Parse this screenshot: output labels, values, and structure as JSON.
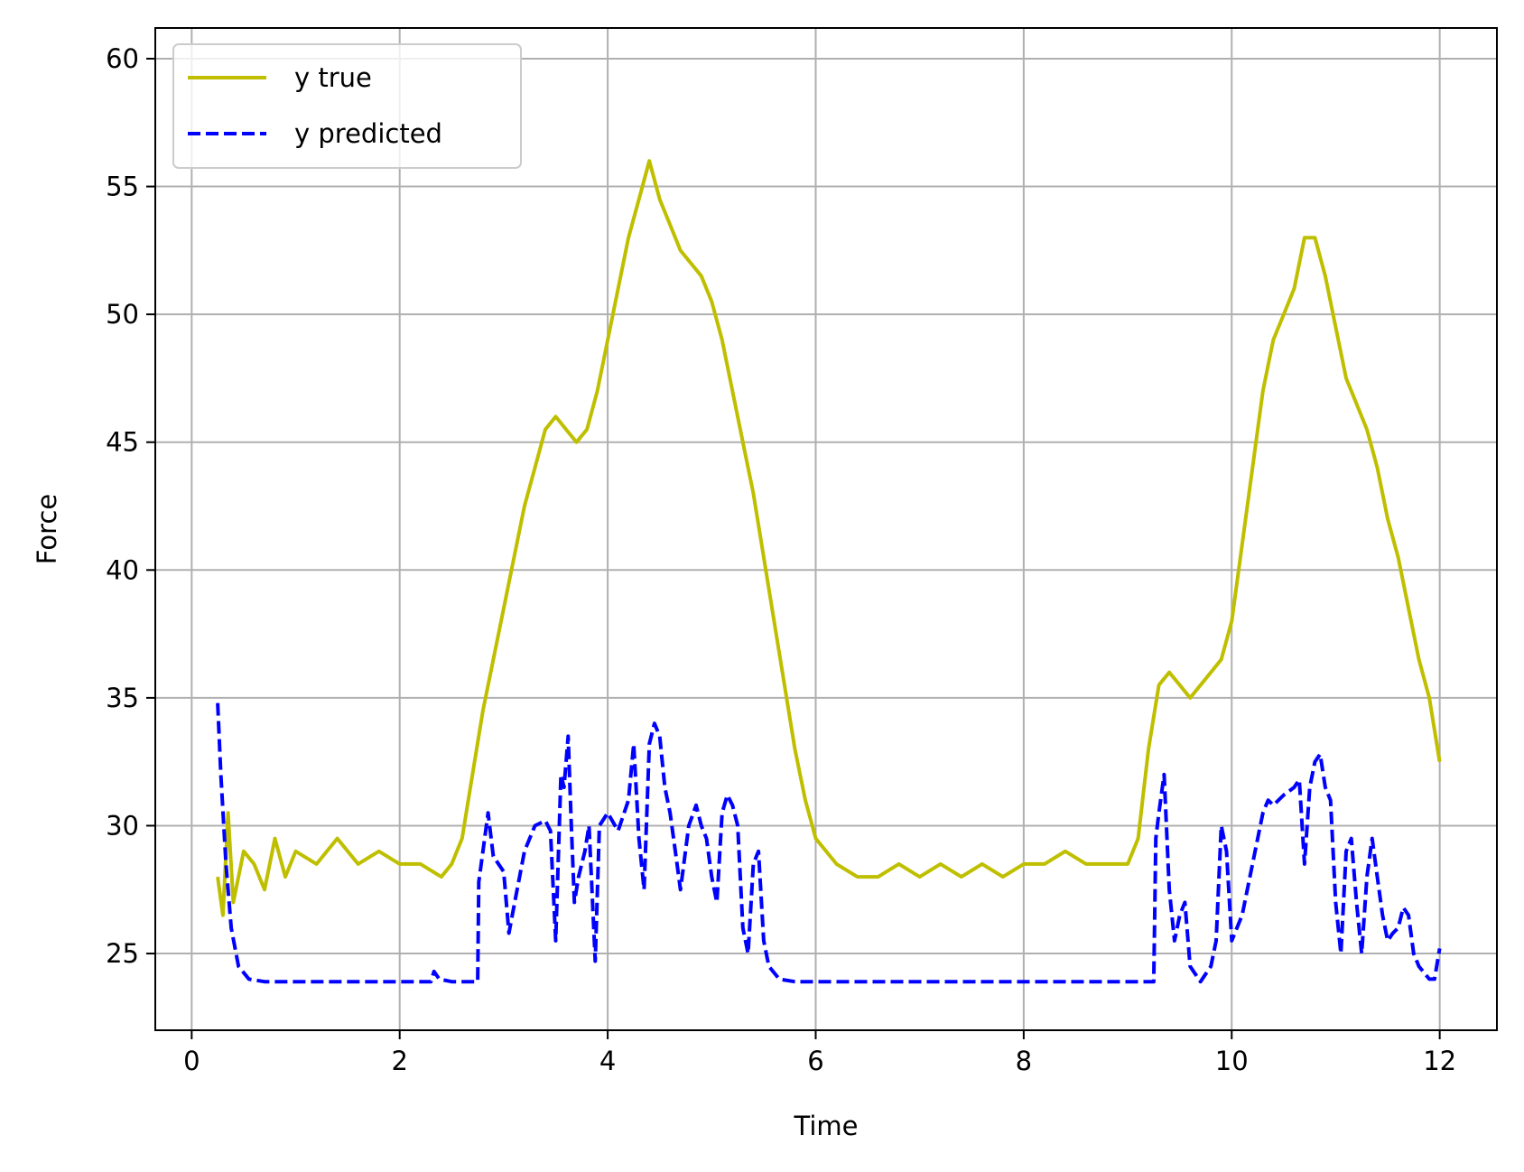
{
  "chart_data": {
    "type": "line",
    "title": "",
    "xlabel": "Time",
    "ylabel": "Force",
    "xlim": [
      -0.35,
      12.55
    ],
    "ylim": [
      22.0,
      61.2
    ],
    "xticks": [
      0,
      2,
      4,
      6,
      8,
      10,
      12
    ],
    "yticks": [
      25,
      30,
      35,
      40,
      45,
      50,
      55,
      60
    ],
    "xtick_labels": [
      "0",
      "2",
      "4",
      "6",
      "8",
      "10",
      "12"
    ],
    "ytick_labels": [
      "25",
      "30",
      "35",
      "40",
      "45",
      "50",
      "55",
      "60"
    ],
    "grid": true,
    "legend_position": "upper-left",
    "series": [
      {
        "name": "y true",
        "color": "#bfbf00",
        "style": "solid",
        "points": [
          [
            0.25,
            28.0
          ],
          [
            0.3,
            26.5
          ],
          [
            0.35,
            30.5
          ],
          [
            0.4,
            27.0
          ],
          [
            0.5,
            29.0
          ],
          [
            0.6,
            28.5
          ],
          [
            0.7,
            27.5
          ],
          [
            0.8,
            29.5
          ],
          [
            0.9,
            28.0
          ],
          [
            1.0,
            29.0
          ],
          [
            1.2,
            28.5
          ],
          [
            1.4,
            29.5
          ],
          [
            1.6,
            28.5
          ],
          [
            1.8,
            29.0
          ],
          [
            2.0,
            28.5
          ],
          [
            2.2,
            28.5
          ],
          [
            2.4,
            28.0
          ],
          [
            2.5,
            28.5
          ],
          [
            2.6,
            29.5
          ],
          [
            2.7,
            32.0
          ],
          [
            2.8,
            34.5
          ],
          [
            2.9,
            36.5
          ],
          [
            3.0,
            38.5
          ],
          [
            3.1,
            40.5
          ],
          [
            3.2,
            42.5
          ],
          [
            3.3,
            44.0
          ],
          [
            3.4,
            45.5
          ],
          [
            3.5,
            46.0
          ],
          [
            3.6,
            45.5
          ],
          [
            3.7,
            45.0
          ],
          [
            3.8,
            45.5
          ],
          [
            3.9,
            47.0
          ],
          [
            4.0,
            49.0
          ],
          [
            4.1,
            51.0
          ],
          [
            4.2,
            53.0
          ],
          [
            4.3,
            54.5
          ],
          [
            4.4,
            56.0
          ],
          [
            4.5,
            54.5
          ],
          [
            4.6,
            53.5
          ],
          [
            4.7,
            52.5
          ],
          [
            4.8,
            52.0
          ],
          [
            4.9,
            51.5
          ],
          [
            5.0,
            50.5
          ],
          [
            5.1,
            49.0
          ],
          [
            5.2,
            47.0
          ],
          [
            5.3,
            45.0
          ],
          [
            5.4,
            43.0
          ],
          [
            5.5,
            40.5
          ],
          [
            5.6,
            38.0
          ],
          [
            5.7,
            35.5
          ],
          [
            5.8,
            33.0
          ],
          [
            5.9,
            31.0
          ],
          [
            6.0,
            29.5
          ],
          [
            6.2,
            28.5
          ],
          [
            6.4,
            28.0
          ],
          [
            6.6,
            28.0
          ],
          [
            6.8,
            28.5
          ],
          [
            7.0,
            28.0
          ],
          [
            7.2,
            28.5
          ],
          [
            7.4,
            28.0
          ],
          [
            7.6,
            28.5
          ],
          [
            7.8,
            28.0
          ],
          [
            8.0,
            28.5
          ],
          [
            8.2,
            28.5
          ],
          [
            8.4,
            29.0
          ],
          [
            8.6,
            28.5
          ],
          [
            8.8,
            28.5
          ],
          [
            9.0,
            28.5
          ],
          [
            9.1,
            29.5
          ],
          [
            9.2,
            33.0
          ],
          [
            9.3,
            35.5
          ],
          [
            9.4,
            36.0
          ],
          [
            9.5,
            35.5
          ],
          [
            9.6,
            35.0
          ],
          [
            9.7,
            35.5
          ],
          [
            9.8,
            36.0
          ],
          [
            9.9,
            36.5
          ],
          [
            10.0,
            38.0
          ],
          [
            10.1,
            41.0
          ],
          [
            10.2,
            44.0
          ],
          [
            10.3,
            47.0
          ],
          [
            10.4,
            49.0
          ],
          [
            10.5,
            50.0
          ],
          [
            10.6,
            51.0
          ],
          [
            10.7,
            53.0
          ],
          [
            10.8,
            53.0
          ],
          [
            10.9,
            51.5
          ],
          [
            11.0,
            49.5
          ],
          [
            11.1,
            47.5
          ],
          [
            11.2,
            46.5
          ],
          [
            11.3,
            45.5
          ],
          [
            11.4,
            44.0
          ],
          [
            11.5,
            42.0
          ],
          [
            11.6,
            40.5
          ],
          [
            11.7,
            38.5
          ],
          [
            11.8,
            36.5
          ],
          [
            11.9,
            35.0
          ],
          [
            12.0,
            32.5
          ]
        ]
      },
      {
        "name": "y predicted",
        "color": "#0000ff",
        "style": "dashed",
        "points": [
          [
            0.25,
            34.8
          ],
          [
            0.28,
            32.0
          ],
          [
            0.33,
            28.5
          ],
          [
            0.38,
            26.0
          ],
          [
            0.45,
            24.5
          ],
          [
            0.55,
            24.0
          ],
          [
            0.7,
            23.9
          ],
          [
            1.0,
            23.9
          ],
          [
            1.5,
            23.9
          ],
          [
            2.0,
            23.9
          ],
          [
            2.3,
            23.9
          ],
          [
            2.33,
            24.3
          ],
          [
            2.38,
            24.0
          ],
          [
            2.5,
            23.9
          ],
          [
            2.75,
            23.9
          ],
          [
            2.76,
            27.8
          ],
          [
            2.8,
            29.0
          ],
          [
            2.85,
            30.5
          ],
          [
            2.9,
            28.8
          ],
          [
            3.0,
            28.2
          ],
          [
            3.05,
            25.8
          ],
          [
            3.12,
            27.3
          ],
          [
            3.2,
            29.0
          ],
          [
            3.3,
            30.0
          ],
          [
            3.4,
            30.2
          ],
          [
            3.45,
            29.8
          ],
          [
            3.5,
            25.5
          ],
          [
            3.55,
            32.0
          ],
          [
            3.58,
            31.5
          ],
          [
            3.62,
            33.5
          ],
          [
            3.65,
            30.0
          ],
          [
            3.68,
            27.0
          ],
          [
            3.72,
            28.0
          ],
          [
            3.78,
            29.0
          ],
          [
            3.82,
            30.0
          ],
          [
            3.88,
            24.7
          ],
          [
            3.92,
            30.0
          ],
          [
            4.0,
            30.5
          ],
          [
            4.1,
            29.8
          ],
          [
            4.2,
            31.0
          ],
          [
            4.25,
            33.2
          ],
          [
            4.3,
            29.5
          ],
          [
            4.35,
            27.5
          ],
          [
            4.4,
            33.2
          ],
          [
            4.45,
            34.0
          ],
          [
            4.5,
            33.5
          ],
          [
            4.55,
            31.5
          ],
          [
            4.6,
            30.5
          ],
          [
            4.65,
            29.0
          ],
          [
            4.7,
            27.5
          ],
          [
            4.78,
            30.0
          ],
          [
            4.85,
            30.8
          ],
          [
            4.9,
            30.0
          ],
          [
            4.95,
            29.5
          ],
          [
            5.0,
            28.0
          ],
          [
            5.05,
            27.0
          ],
          [
            5.1,
            30.5
          ],
          [
            5.15,
            31.2
          ],
          [
            5.2,
            30.8
          ],
          [
            5.25,
            30.0
          ],
          [
            5.3,
            26.0
          ],
          [
            5.35,
            25.0
          ],
          [
            5.4,
            28.5
          ],
          [
            5.45,
            29.0
          ],
          [
            5.5,
            25.5
          ],
          [
            5.55,
            24.5
          ],
          [
            5.65,
            24.0
          ],
          [
            5.8,
            23.9
          ],
          [
            6.0,
            23.9
          ],
          [
            7.0,
            23.9
          ],
          [
            8.0,
            23.9
          ],
          [
            9.0,
            23.9
          ],
          [
            9.25,
            23.9
          ],
          [
            9.27,
            29.5
          ],
          [
            9.3,
            30.5
          ],
          [
            9.35,
            32.0
          ],
          [
            9.4,
            27.5
          ],
          [
            9.45,
            25.5
          ],
          [
            9.5,
            26.5
          ],
          [
            9.55,
            27.0
          ],
          [
            9.6,
            24.5
          ],
          [
            9.7,
            23.9
          ],
          [
            9.8,
            24.5
          ],
          [
            9.85,
            25.5
          ],
          [
            9.9,
            30.0
          ],
          [
            9.95,
            29.0
          ],
          [
            10.0,
            25.5
          ],
          [
            10.05,
            26.0
          ],
          [
            10.1,
            26.5
          ],
          [
            10.2,
            28.5
          ],
          [
            10.3,
            30.5
          ],
          [
            10.35,
            31.0
          ],
          [
            10.4,
            30.8
          ],
          [
            10.5,
            31.2
          ],
          [
            10.6,
            31.5
          ],
          [
            10.65,
            31.8
          ],
          [
            10.7,
            28.5
          ],
          [
            10.75,
            31.5
          ],
          [
            10.8,
            32.5
          ],
          [
            10.85,
            32.8
          ],
          [
            10.9,
            31.5
          ],
          [
            10.95,
            31.0
          ],
          [
            11.0,
            27.0
          ],
          [
            11.05,
            25.0
          ],
          [
            11.1,
            29.0
          ],
          [
            11.15,
            29.5
          ],
          [
            11.2,
            27.0
          ],
          [
            11.25,
            25.0
          ],
          [
            11.3,
            28.0
          ],
          [
            11.35,
            29.5
          ],
          [
            11.4,
            28.0
          ],
          [
            11.45,
            26.5
          ],
          [
            11.5,
            25.5
          ],
          [
            11.55,
            25.8
          ],
          [
            11.6,
            26.0
          ],
          [
            11.65,
            26.8
          ],
          [
            11.7,
            26.5
          ],
          [
            11.75,
            25.0
          ],
          [
            11.8,
            24.5
          ],
          [
            11.9,
            24.0
          ],
          [
            11.95,
            24.0
          ],
          [
            12.0,
            25.2
          ]
        ]
      }
    ]
  }
}
